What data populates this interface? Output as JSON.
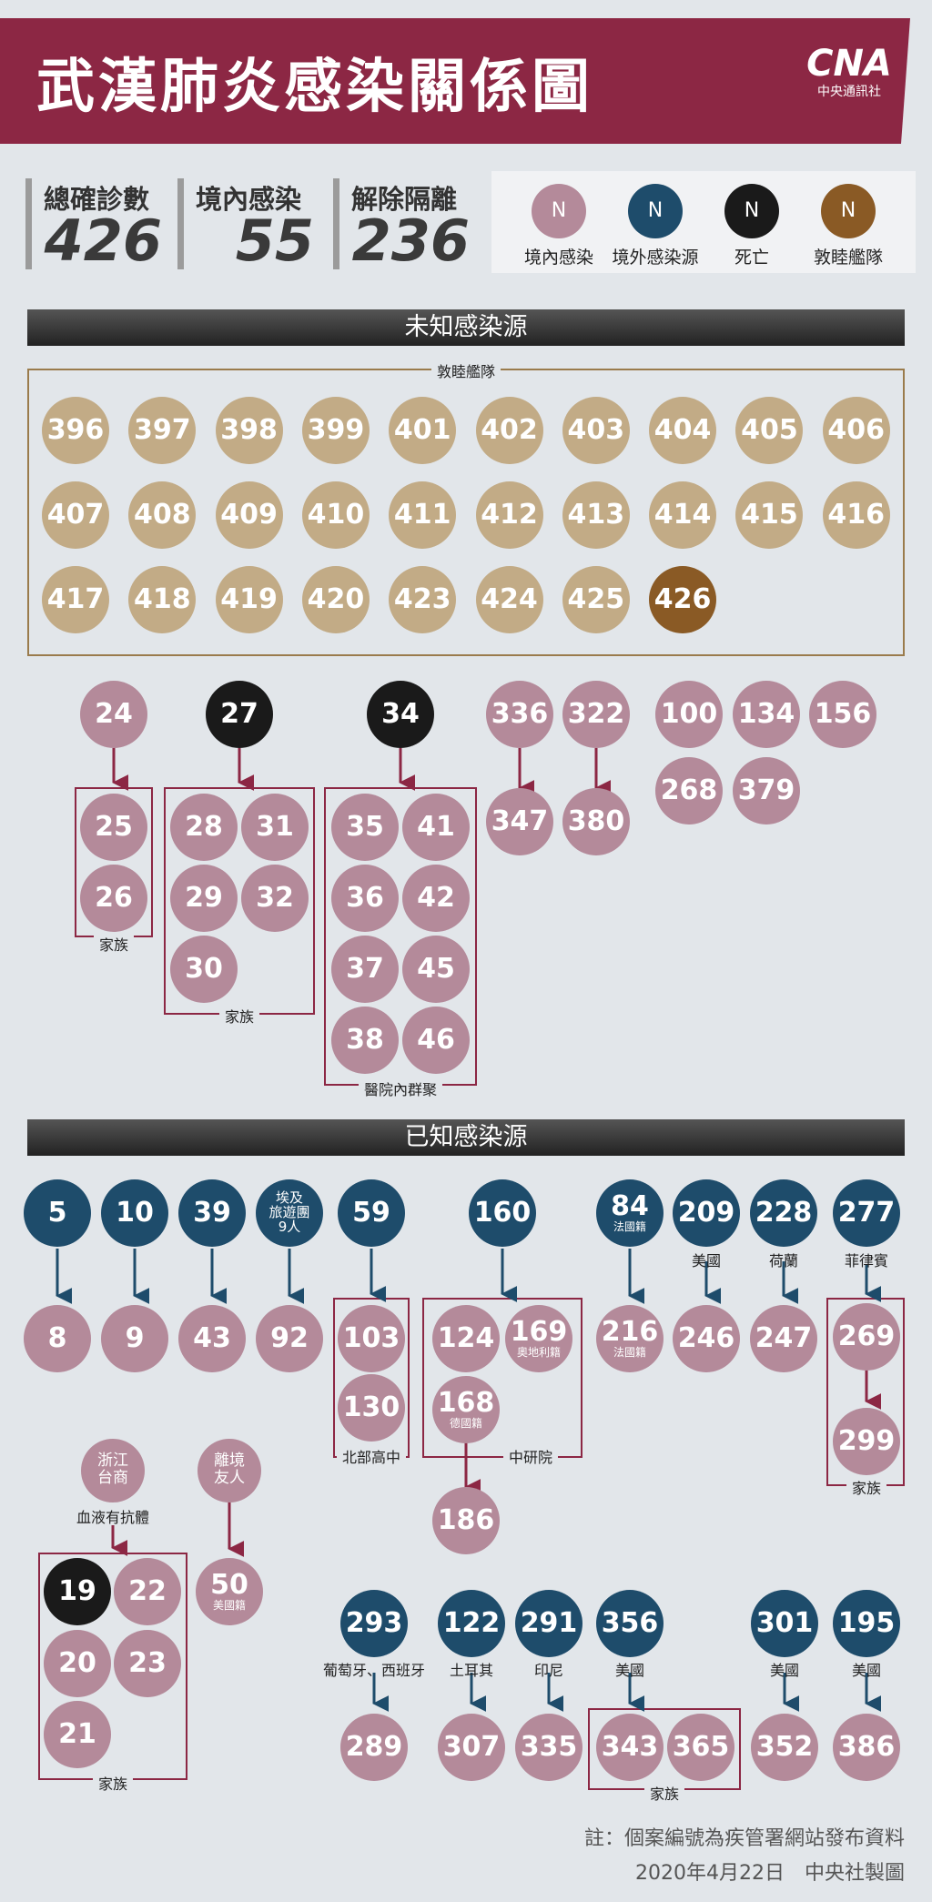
{
  "title": "武漢肺炎感染關係圖",
  "logo": {
    "mark": "CNA",
    "sub": "中央通訊社"
  },
  "stats": [
    {
      "label": "總確診數",
      "value": "426"
    },
    {
      "label": "境內感染",
      "value": "55"
    },
    {
      "label": "解除隔離",
      "value": "236"
    }
  ],
  "legend": [
    {
      "symbol": "N",
      "label": "境內感染",
      "color": "#b48a9a"
    },
    {
      "symbol": "N",
      "label": "境外感染源",
      "color": "#1e4c6b"
    },
    {
      "symbol": "N",
      "label": "死亡",
      "color": "#1a1a1a"
    },
    {
      "symbol": "N",
      "label": "敦睦艦隊",
      "color": "#8a5a25"
    }
  ],
  "colors": {
    "local": "#b48a9a",
    "imported": "#1e4c6b",
    "death": "#1a1a1a",
    "fleet": "#c2ab86",
    "fleet_dark": "#8a5a25",
    "frame": "#8c2744",
    "fleet_frame": "#9a7b4c"
  },
  "sections": {
    "unknown": "未知感染源",
    "known": "已知感染源"
  },
  "unknown": {
    "fleet_label": "敦睦艦隊",
    "fleet_rows": [
      [
        "396",
        "397",
        "398",
        "399",
        "401",
        "402",
        "403",
        "404",
        "405",
        "406"
      ],
      [
        "407",
        "408",
        "409",
        "410",
        "411",
        "412",
        "413",
        "414",
        "415",
        "416"
      ],
      [
        "417",
        "418",
        "419",
        "420",
        "423",
        "424",
        "425",
        "426"
      ]
    ],
    "fleet_dark_case": "426",
    "groups": {
      "fam1": "家族",
      "fam2": "家族",
      "hospital": "醫院內群聚"
    },
    "cases": {
      "c24": "24",
      "c25": "25",
      "c26": "26",
      "c27": "27",
      "c28": "28",
      "c31": "31",
      "c29": "29",
      "c32": "32",
      "c30": "30",
      "c34": "34",
      "c35": "35",
      "c41": "41",
      "c36": "36",
      "c42": "42",
      "c37": "37",
      "c45": "45",
      "c38": "38",
      "c46": "46",
      "c336": "336",
      "c347": "347",
      "c322": "322",
      "c380": "380",
      "c100": "100",
      "c134": "134",
      "c156": "156",
      "c268": "268",
      "c379": "379"
    }
  },
  "known": {
    "cases": {
      "c5": "5",
      "c8": "8",
      "c10": "10",
      "c9": "9",
      "c39": "39",
      "c43": "43",
      "c92": "92",
      "c59": "59",
      "c103": "103",
      "c130": "130",
      "c160": "160",
      "c124": "124",
      "c169": "169",
      "c168": "168",
      "c186": "186",
      "c84": "84",
      "c216": "216",
      "c209": "209",
      "c246": "246",
      "c228": "228",
      "c247": "247",
      "c277": "277",
      "c269": "269",
      "c299": "299",
      "c19": "19",
      "c22": "22",
      "c20": "20",
      "c23": "23",
      "c21": "21",
      "c50": "50",
      "c293": "293",
      "c289": "289",
      "c122": "122",
      "c307": "307",
      "c291": "291",
      "c335": "335",
      "c356": "356",
      "c343": "343",
      "c365": "365",
      "c301": "301",
      "c352": "352",
      "c195": "195",
      "c386": "386"
    },
    "sublabels": {
      "c84": "法國籍",
      "c216": "法國籍",
      "c169": "奧地利籍",
      "c168": "德國籍",
      "c50": "美國籍"
    },
    "egypt": [
      "埃及",
      "旅遊團",
      "9人"
    ],
    "zhejiang": [
      "浙江",
      "台商"
    ],
    "depart": [
      "離境",
      "友人"
    ],
    "labels": {
      "us209": "美國",
      "nl228": "荷蘭",
      "ph277": "菲律賓",
      "blood": "血液有抗體",
      "es293": "葡萄牙、西班牙",
      "tr122": "土耳其",
      "id291": "印尼",
      "us356": "美國",
      "us301": "美國",
      "us195": "美國"
    },
    "groups": {
      "school": "北部高中",
      "academia": "中研院",
      "fam277": "家族",
      "fam19": "家族",
      "fam356": "家族"
    }
  },
  "note": {
    "line1": "註：個案編號為疾管署網站發布資料",
    "line2": "2020年4月22日　中央社製圖"
  }
}
